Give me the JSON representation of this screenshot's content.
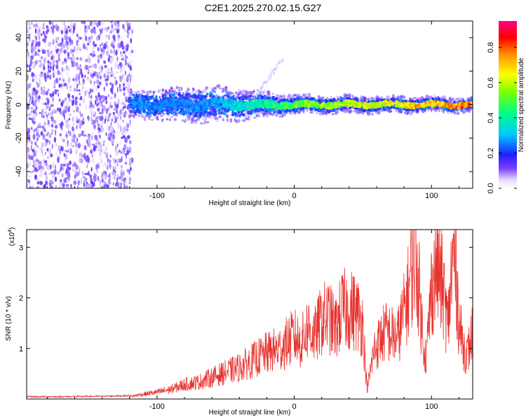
{
  "title": "C2E1.2025.270.02.15.G27",
  "chart_data": [
    {
      "type": "heatmap",
      "name": "spectrogram",
      "xlabel": "Height of straight line (km)",
      "ylabel": "Frequency (Hz)",
      "xlim": [
        -195,
        130
      ],
      "ylim": [
        -50,
        50
      ],
      "xticks": [
        -100,
        0,
        100
      ],
      "xtick_labels": [
        "-100",
        "0",
        "100"
      ],
      "yticks": [
        40,
        20,
        0,
        -20,
        -40
      ],
      "ytick_labels": [
        "40",
        "20",
        "0",
        "-20",
        "-40"
      ],
      "description_of_field": "Noise region (x < -120 km) scattered across all frequencies; signal band centred near 0 Hz from -120 km to 130 km, widening to about +/-8 Hz near -60 km and narrowing to about +/-3 Hz beyond 0 km, with peak amplitude (red) between 0 and 130 km; faint branch rising toward about 28 Hz near -15 km.",
      "colorbar": {
        "label": "Normalized spectral amplitude",
        "range": [
          0.0,
          0.95
        ],
        "ticks": [
          0.0,
          0.2,
          0.4,
          0.6,
          0.8
        ],
        "tick_labels": [
          "0.0",
          "0.2",
          "0.4",
          "0.6",
          "0.8"
        ]
      }
    },
    {
      "type": "line",
      "name": "snr",
      "xlabel": "Height of straight line (km)",
      "ylabel": "SNR (10 * v/v)",
      "scale_label": "(x10",
      "scale_exponent": "4",
      "scale_close": ")",
      "xlim": [
        -195,
        130
      ],
      "ylim": [
        0,
        3.35
      ],
      "xticks": [
        -100,
        0,
        100
      ],
      "xtick_labels": [
        "-100",
        "0",
        "100"
      ],
      "yticks": [
        1,
        2,
        3
      ],
      "ytick_labels": [
        "1",
        "2",
        "3"
      ],
      "line_color": "#e8332e",
      "series": [
        {
          "name": "SNR envelope",
          "x": [
            -195,
            -170,
            -140,
            -120,
            -110,
            -100,
            -90,
            -80,
            -70,
            -60,
            -50,
            -40,
            -30,
            -20,
            -10,
            0,
            5,
            10,
            15,
            20,
            25,
            30,
            35,
            40,
            45,
            50,
            53,
            55,
            58,
            62,
            66,
            70,
            75,
            80,
            83,
            86,
            88,
            90,
            93,
            96,
            100,
            104,
            108,
            112,
            114,
            116,
            118,
            120,
            123,
            126,
            130
          ],
          "y": [
            0.03,
            0.03,
            0.04,
            0.05,
            0.1,
            0.14,
            0.2,
            0.3,
            0.35,
            0.45,
            0.55,
            0.65,
            0.8,
            0.95,
            1.05,
            1.3,
            1.15,
            1.5,
            1.3,
            1.65,
            1.7,
            1.45,
            1.85,
            1.85,
            1.8,
            1.55,
            0.2,
            0.5,
            1.0,
            1.2,
            1.4,
            1.35,
            1.25,
            1.8,
            2.2,
            2.8,
            3.1,
            2.6,
            1.5,
            0.8,
            2.3,
            2.8,
            2.3,
            1.5,
            2.4,
            3.0,
            2.6,
            1.6,
            1.1,
            0.9,
            1.4
          ]
        }
      ]
    }
  ]
}
